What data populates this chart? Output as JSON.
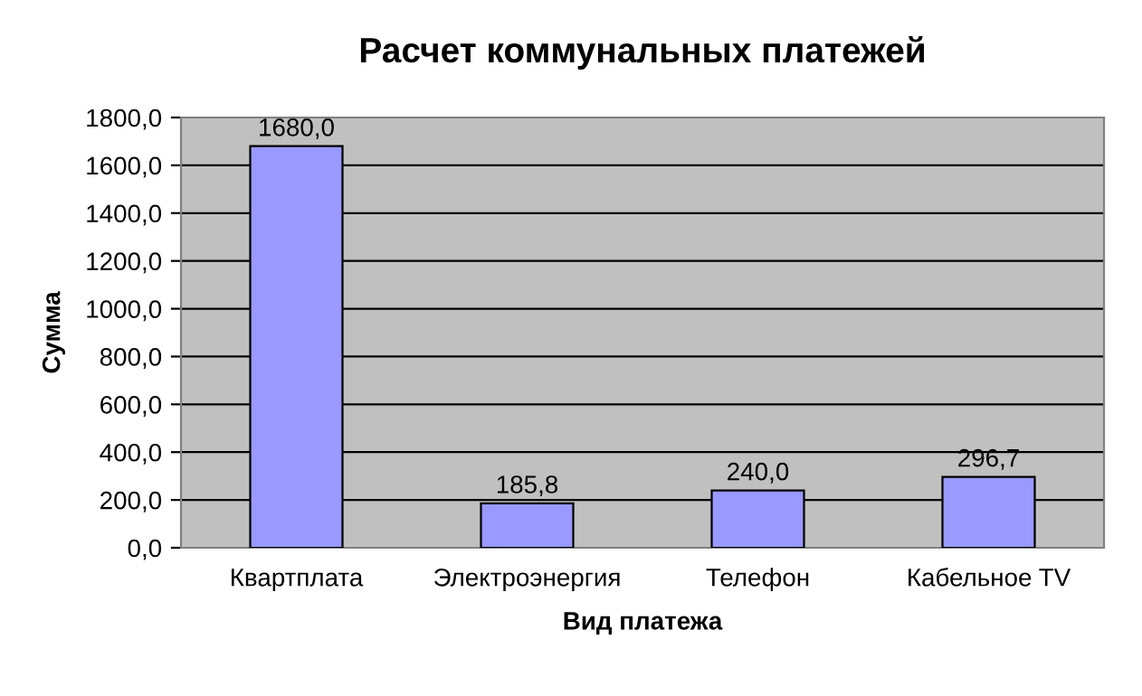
{
  "chart_data": {
    "type": "bar",
    "title": "Расчет коммунальных платежей",
    "xlabel": "Вид платежа",
    "ylabel": "Сумма",
    "categories": [
      "Квартплата",
      "Электроэнергия",
      "Телефон",
      "Кабельное TV"
    ],
    "values": [
      1680.0,
      185.8,
      240.0,
      296.7
    ],
    "value_labels": [
      "1680,0",
      "185,8",
      "240,0",
      "296,7"
    ],
    "color": "#9999ff",
    "ylim": [
      0,
      1800
    ],
    "yticks": [
      {
        "value": 0,
        "label": "0,0"
      },
      {
        "value": 200,
        "label": "200,0"
      },
      {
        "value": 400,
        "label": "400,0"
      },
      {
        "value": 600,
        "label": "600,0"
      },
      {
        "value": 800,
        "label": "800,0"
      },
      {
        "value": 1000,
        "label": "1000,0"
      },
      {
        "value": 1200,
        "label": "1200,0"
      },
      {
        "value": 1400,
        "label": "1400,0"
      },
      {
        "value": 1600,
        "label": "1600,0"
      },
      {
        "value": 1800,
        "label": "1800,0"
      }
    ],
    "grid": "y",
    "legend": false
  }
}
